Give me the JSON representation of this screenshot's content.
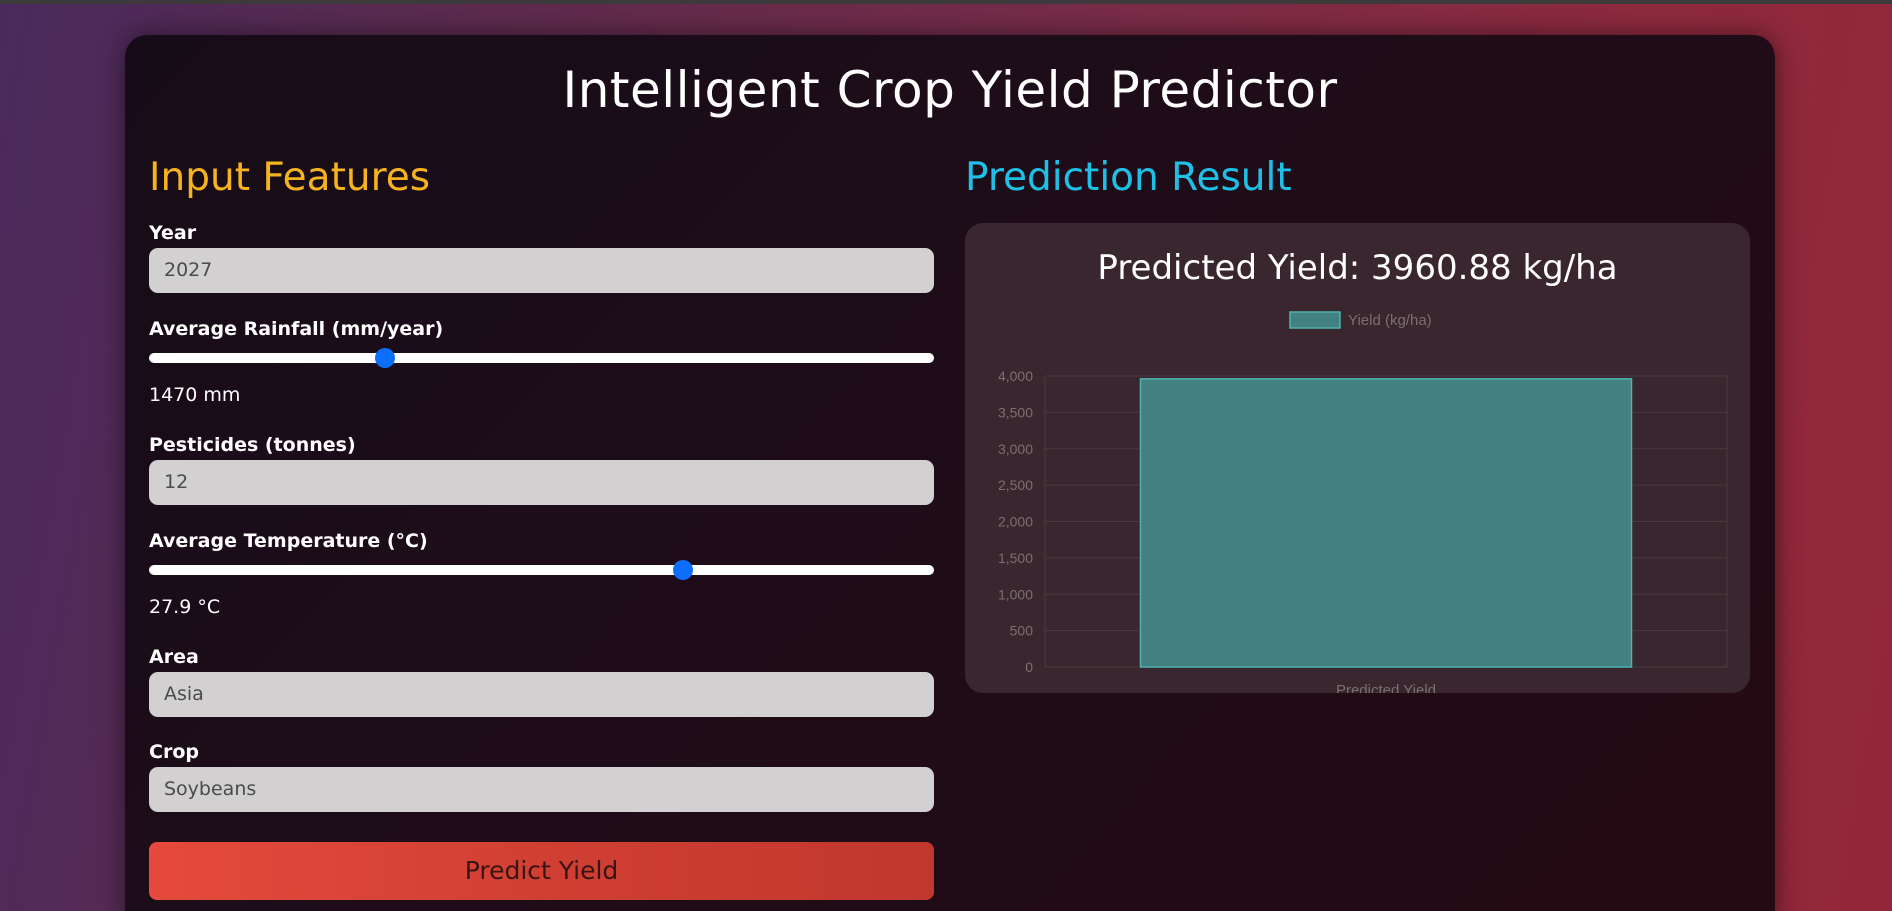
{
  "page": {
    "title": "Intelligent Crop Yield Predictor"
  },
  "input": {
    "heading": "Input Features",
    "year": {
      "label": "Year",
      "value": "2027"
    },
    "rainfall": {
      "label": "Average Rainfall (mm/year)",
      "value_text": "1470 mm",
      "level": 0.3
    },
    "pesticides": {
      "label": "Pesticides (tonnes)",
      "value": "12"
    },
    "temperature": {
      "label": "Average Temperature (°C)",
      "value_text": "27.9 °C",
      "level": 0.68
    },
    "area": {
      "label": "Area",
      "value": "Asia"
    },
    "crop": {
      "label": "Crop",
      "value": "Soybeans"
    },
    "predict_button": "Predict Yield"
  },
  "result": {
    "heading": "Prediction Result",
    "text": "Predicted Yield: 3960.88 kg/ha"
  },
  "colors": {
    "bar_fill": "#438180",
    "bar_border": "#4fb3b3",
    "slider_thumb": "#0d6efd",
    "input_heading": "#f5b31f",
    "result_heading": "#1fc0e8"
  },
  "chart_data": {
    "type": "bar",
    "categories": [
      "Predicted Yield"
    ],
    "series": [
      {
        "name": "Yield (kg/ha)",
        "values": [
          3960.88
        ]
      }
    ],
    "ylim": [
      0,
      4000
    ],
    "yticks": [
      0,
      500,
      1000,
      1500,
      2000,
      2500,
      3000,
      3500,
      4000
    ],
    "ytick_labels": [
      "0",
      "500",
      "1,000",
      "1,500",
      "2,000",
      "2,500",
      "3,000",
      "3,500",
      "4,000"
    ],
    "legend": "top",
    "grid": true
  }
}
